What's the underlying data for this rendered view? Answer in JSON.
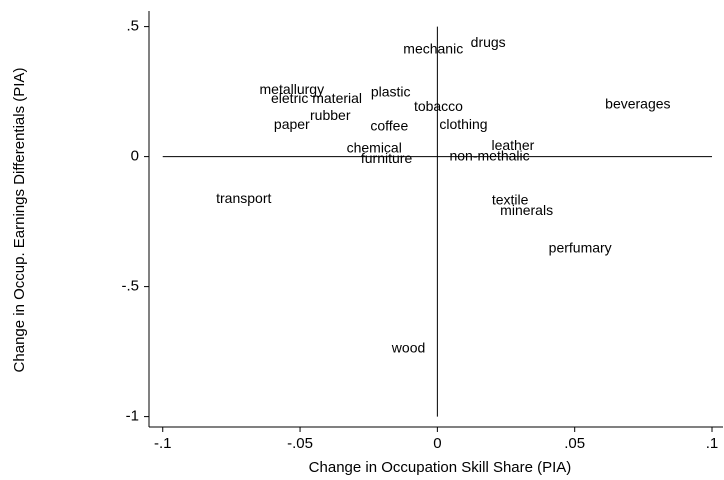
{
  "chart_data": {
    "type": "scatter",
    "x_label": "Change in Occupation Skill Share (PIA)",
    "y_label": "Change in Occup. Earnings Differentials (PIA)",
    "labels": [
      "mechanic",
      "drugs",
      "metallurgy",
      "eletric material",
      "plastic",
      "tobacco",
      "beverages",
      "rubber",
      "paper",
      "coffee",
      "clothing",
      "leather",
      "chemical",
      "furniture",
      "non-methalic",
      "transport",
      "textile",
      "minerals",
      "perfumary",
      "wood"
    ],
    "x": [
      -0.0015,
      0.0185,
      -0.053,
      -0.044,
      -0.017,
      0.0004,
      0.073,
      -0.039,
      -0.053,
      -0.0175,
      0.0095,
      0.0275,
      -0.023,
      -0.0185,
      0.019,
      -0.0705,
      0.0265,
      0.0325,
      0.052,
      -0.0105
    ],
    "y": [
      0.41,
      0.435,
      0.255,
      0.22,
      0.245,
      0.19,
      0.2,
      0.155,
      0.12,
      0.115,
      0.12,
      0.04,
      0.03,
      -0.01,
      0.0,
      -0.165,
      -0.17,
      -0.21,
      -0.355,
      -0.74
    ],
    "xlim": [
      -0.105,
      0.104
    ],
    "ylim": [
      -1.04,
      0.56
    ],
    "xticks": [
      {
        "value": -0.1,
        "label": "-.1"
      },
      {
        "value": -0.05,
        "label": "-.05"
      },
      0,
      {
        "value": 0.05,
        "label": ".05"
      },
      {
        "value": 0.1,
        "label": ".1"
      }
    ],
    "yticks": [
      {
        "value": -1,
        "label": "-1"
      },
      {
        "value": -0.5,
        "label": "-.5"
      },
      0,
      {
        "value": 0.5,
        "label": ".5"
      }
    ],
    "xline": [
      0
    ],
    "yline": [
      0
    ]
  }
}
